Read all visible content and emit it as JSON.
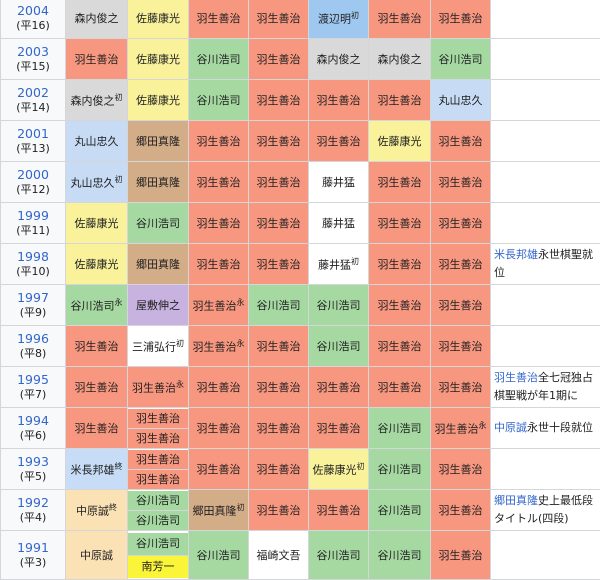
{
  "colors": {
    "羽生善治": "#f8977f",
    "佐藤康光": "#f9f29b",
    "谷川浩司": "#a5d9a1",
    "森内俊之": "#d9d9d9",
    "渡辺明": "#9fc8f0",
    "丸山忠久": "#c7dcf4",
    "郷田真隆": "#d3ad88",
    "藤井猛": "#ffffff",
    "屋敷伸之": "#c8b2df",
    "三浦弘行": "#ffffff",
    "米長邦雄": "#c7dcf6",
    "中原誠": "#fbe2b5",
    "南芳一": "#fbf53a",
    "福崎文吾": "#ffffff"
  },
  "rows": [
    {
      "year": "2004",
      "era": "(平16)",
      "cells": [
        [
          {
            "name": "森内俊之"
          }
        ],
        [
          {
            "name": "佐藤康光"
          }
        ],
        [
          {
            "name": "羽生善治"
          }
        ],
        [
          {
            "name": "羽生善治"
          }
        ],
        [
          {
            "name": "渡辺明",
            "mark": "初"
          }
        ],
        [
          {
            "name": "羽生善治"
          }
        ],
        [
          {
            "name": "羽生善治"
          }
        ]
      ]
    },
    {
      "year": "2003",
      "era": "(平15)",
      "cells": [
        [
          {
            "name": "羽生善治"
          }
        ],
        [
          {
            "name": "佐藤康光"
          }
        ],
        [
          {
            "name": "谷川浩司"
          }
        ],
        [
          {
            "name": "羽生善治"
          }
        ],
        [
          {
            "name": "森内俊之"
          }
        ],
        [
          {
            "name": "森内俊之"
          }
        ],
        [
          {
            "name": "谷川浩司"
          }
        ]
      ]
    },
    {
      "year": "2002",
      "era": "(平14)",
      "cells": [
        [
          {
            "name": "森内俊之",
            "mark": "初"
          }
        ],
        [
          {
            "name": "佐藤康光"
          }
        ],
        [
          {
            "name": "谷川浩司"
          }
        ],
        [
          {
            "name": "羽生善治"
          }
        ],
        [
          {
            "name": "羽生善治"
          }
        ],
        [
          {
            "name": "羽生善治"
          }
        ],
        [
          {
            "name": "丸山忠久"
          }
        ]
      ]
    },
    {
      "year": "2001",
      "era": "(平13)",
      "cells": [
        [
          {
            "name": "丸山忠久"
          }
        ],
        [
          {
            "name": "郷田真隆"
          }
        ],
        [
          {
            "name": "羽生善治"
          }
        ],
        [
          {
            "name": "羽生善治"
          }
        ],
        [
          {
            "name": "羽生善治"
          }
        ],
        [
          {
            "name": "佐藤康光"
          }
        ],
        [
          {
            "name": "羽生善治"
          }
        ]
      ]
    },
    {
      "year": "2000",
      "era": "(平12)",
      "cells": [
        [
          {
            "name": "丸山忠久",
            "mark": "初"
          }
        ],
        [
          {
            "name": "郷田真隆"
          }
        ],
        [
          {
            "name": "羽生善治"
          }
        ],
        [
          {
            "name": "羽生善治"
          }
        ],
        [
          {
            "name": "藤井猛"
          }
        ],
        [
          {
            "name": "羽生善治"
          }
        ],
        [
          {
            "name": "羽生善治"
          }
        ]
      ]
    },
    {
      "year": "1999",
      "era": "(平11)",
      "cells": [
        [
          {
            "name": "佐藤康光"
          }
        ],
        [
          {
            "name": "谷川浩司"
          }
        ],
        [
          {
            "name": "羽生善治"
          }
        ],
        [
          {
            "name": "羽生善治"
          }
        ],
        [
          {
            "name": "藤井猛"
          }
        ],
        [
          {
            "name": "羽生善治"
          }
        ],
        [
          {
            "name": "羽生善治"
          }
        ]
      ]
    },
    {
      "year": "1998",
      "era": "(平10)",
      "cells": [
        [
          {
            "name": "佐藤康光"
          }
        ],
        [
          {
            "name": "郷田真隆"
          }
        ],
        [
          {
            "name": "羽生善治"
          }
        ],
        [
          {
            "name": "羽生善治"
          }
        ],
        [
          {
            "name": "藤井猛",
            "mark": "初"
          }
        ],
        [
          {
            "name": "羽生善治"
          }
        ],
        [
          {
            "name": "羽生善治"
          }
        ]
      ],
      "note": {
        "link": "米長邦雄",
        "text": "永世棋聖就位"
      }
    },
    {
      "year": "1997",
      "era": "(平9)",
      "cells": [
        [
          {
            "name": "谷川浩司",
            "mark": "永"
          }
        ],
        [
          {
            "name": "屋敷伸之"
          }
        ],
        [
          {
            "name": "羽生善治",
            "mark": "永"
          }
        ],
        [
          {
            "name": "谷川浩司"
          }
        ],
        [
          {
            "name": "谷川浩司"
          }
        ],
        [
          {
            "name": "羽生善治"
          }
        ],
        [
          {
            "name": "羽生善治"
          }
        ]
      ]
    },
    {
      "year": "1996",
      "era": "(平8)",
      "cells": [
        [
          {
            "name": "羽生善治"
          }
        ],
        [
          {
            "name": "三浦弘行",
            "mark": "初"
          }
        ],
        [
          {
            "name": "羽生善治",
            "mark": "永"
          }
        ],
        [
          {
            "name": "羽生善治"
          }
        ],
        [
          {
            "name": "谷川浩司"
          }
        ],
        [
          {
            "name": "羽生善治"
          }
        ],
        [
          {
            "name": "羽生善治"
          }
        ]
      ]
    },
    {
      "year": "1995",
      "era": "(平7)",
      "cells": [
        [
          {
            "name": "羽生善治"
          }
        ],
        [
          {
            "name": "羽生善治",
            "mark": "永"
          }
        ],
        [
          {
            "name": "羽生善治"
          }
        ],
        [
          {
            "name": "羽生善治"
          }
        ],
        [
          {
            "name": "羽生善治"
          }
        ],
        [
          {
            "name": "羽生善治"
          }
        ],
        [
          {
            "name": "羽生善治"
          }
        ]
      ],
      "note": {
        "link": "羽生善治",
        "text": "全七冠独占棋聖戦が年1期に"
      }
    },
    {
      "year": "1994",
      "era": "(平6)",
      "cells": [
        [
          {
            "name": "羽生善治"
          }
        ],
        [
          {
            "name": "羽生善治"
          },
          {
            "name": "羽生善治"
          }
        ],
        [
          {
            "name": "羽生善治"
          }
        ],
        [
          {
            "name": "羽生善治"
          }
        ],
        [
          {
            "name": "羽生善治"
          }
        ],
        [
          {
            "name": "谷川浩司"
          }
        ],
        [
          {
            "name": "羽生善治",
            "mark": "永"
          }
        ]
      ],
      "note": {
        "link": "中原誠",
        "text": "永世十段就位"
      }
    },
    {
      "year": "1993",
      "era": "(平5)",
      "cells": [
        [
          {
            "name": "米長邦雄",
            "mark": "終"
          }
        ],
        [
          {
            "name": "羽生善治"
          },
          {
            "name": "羽生善治"
          }
        ],
        [
          {
            "name": "羽生善治"
          }
        ],
        [
          {
            "name": "羽生善治"
          }
        ],
        [
          {
            "name": "佐藤康光",
            "mark": "初"
          }
        ],
        [
          {
            "name": "谷川浩司"
          }
        ],
        [
          {
            "name": "羽生善治"
          }
        ]
      ]
    },
    {
      "year": "1992",
      "era": "(平4)",
      "cells": [
        [
          {
            "name": "中原誠",
            "mark": "終"
          }
        ],
        [
          {
            "name": "谷川浩司"
          },
          {
            "name": "谷川浩司"
          }
        ],
        [
          {
            "name": "郷田真隆",
            "mark": "初"
          }
        ],
        [
          {
            "name": "羽生善治"
          }
        ],
        [
          {
            "name": "羽生善治"
          }
        ],
        [
          {
            "name": "谷川浩司"
          }
        ],
        [
          {
            "name": "羽生善治"
          }
        ]
      ],
      "note": {
        "link": "郷田真隆",
        "text": "史上最低段タイトル(四段)"
      }
    },
    {
      "year": "1991",
      "era": "(平3)",
      "cells": [
        [
          {
            "name": "中原誠"
          }
        ],
        [
          {
            "name": "谷川浩司"
          },
          {
            "name": "南芳一"
          }
        ],
        [
          {
            "name": "谷川浩司"
          }
        ],
        [
          {
            "name": "福崎文吾"
          }
        ],
        [
          {
            "name": "谷川浩司"
          }
        ],
        [
          {
            "name": "谷川浩司"
          }
        ],
        [
          {
            "name": "羽生善治"
          }
        ]
      ]
    }
  ]
}
